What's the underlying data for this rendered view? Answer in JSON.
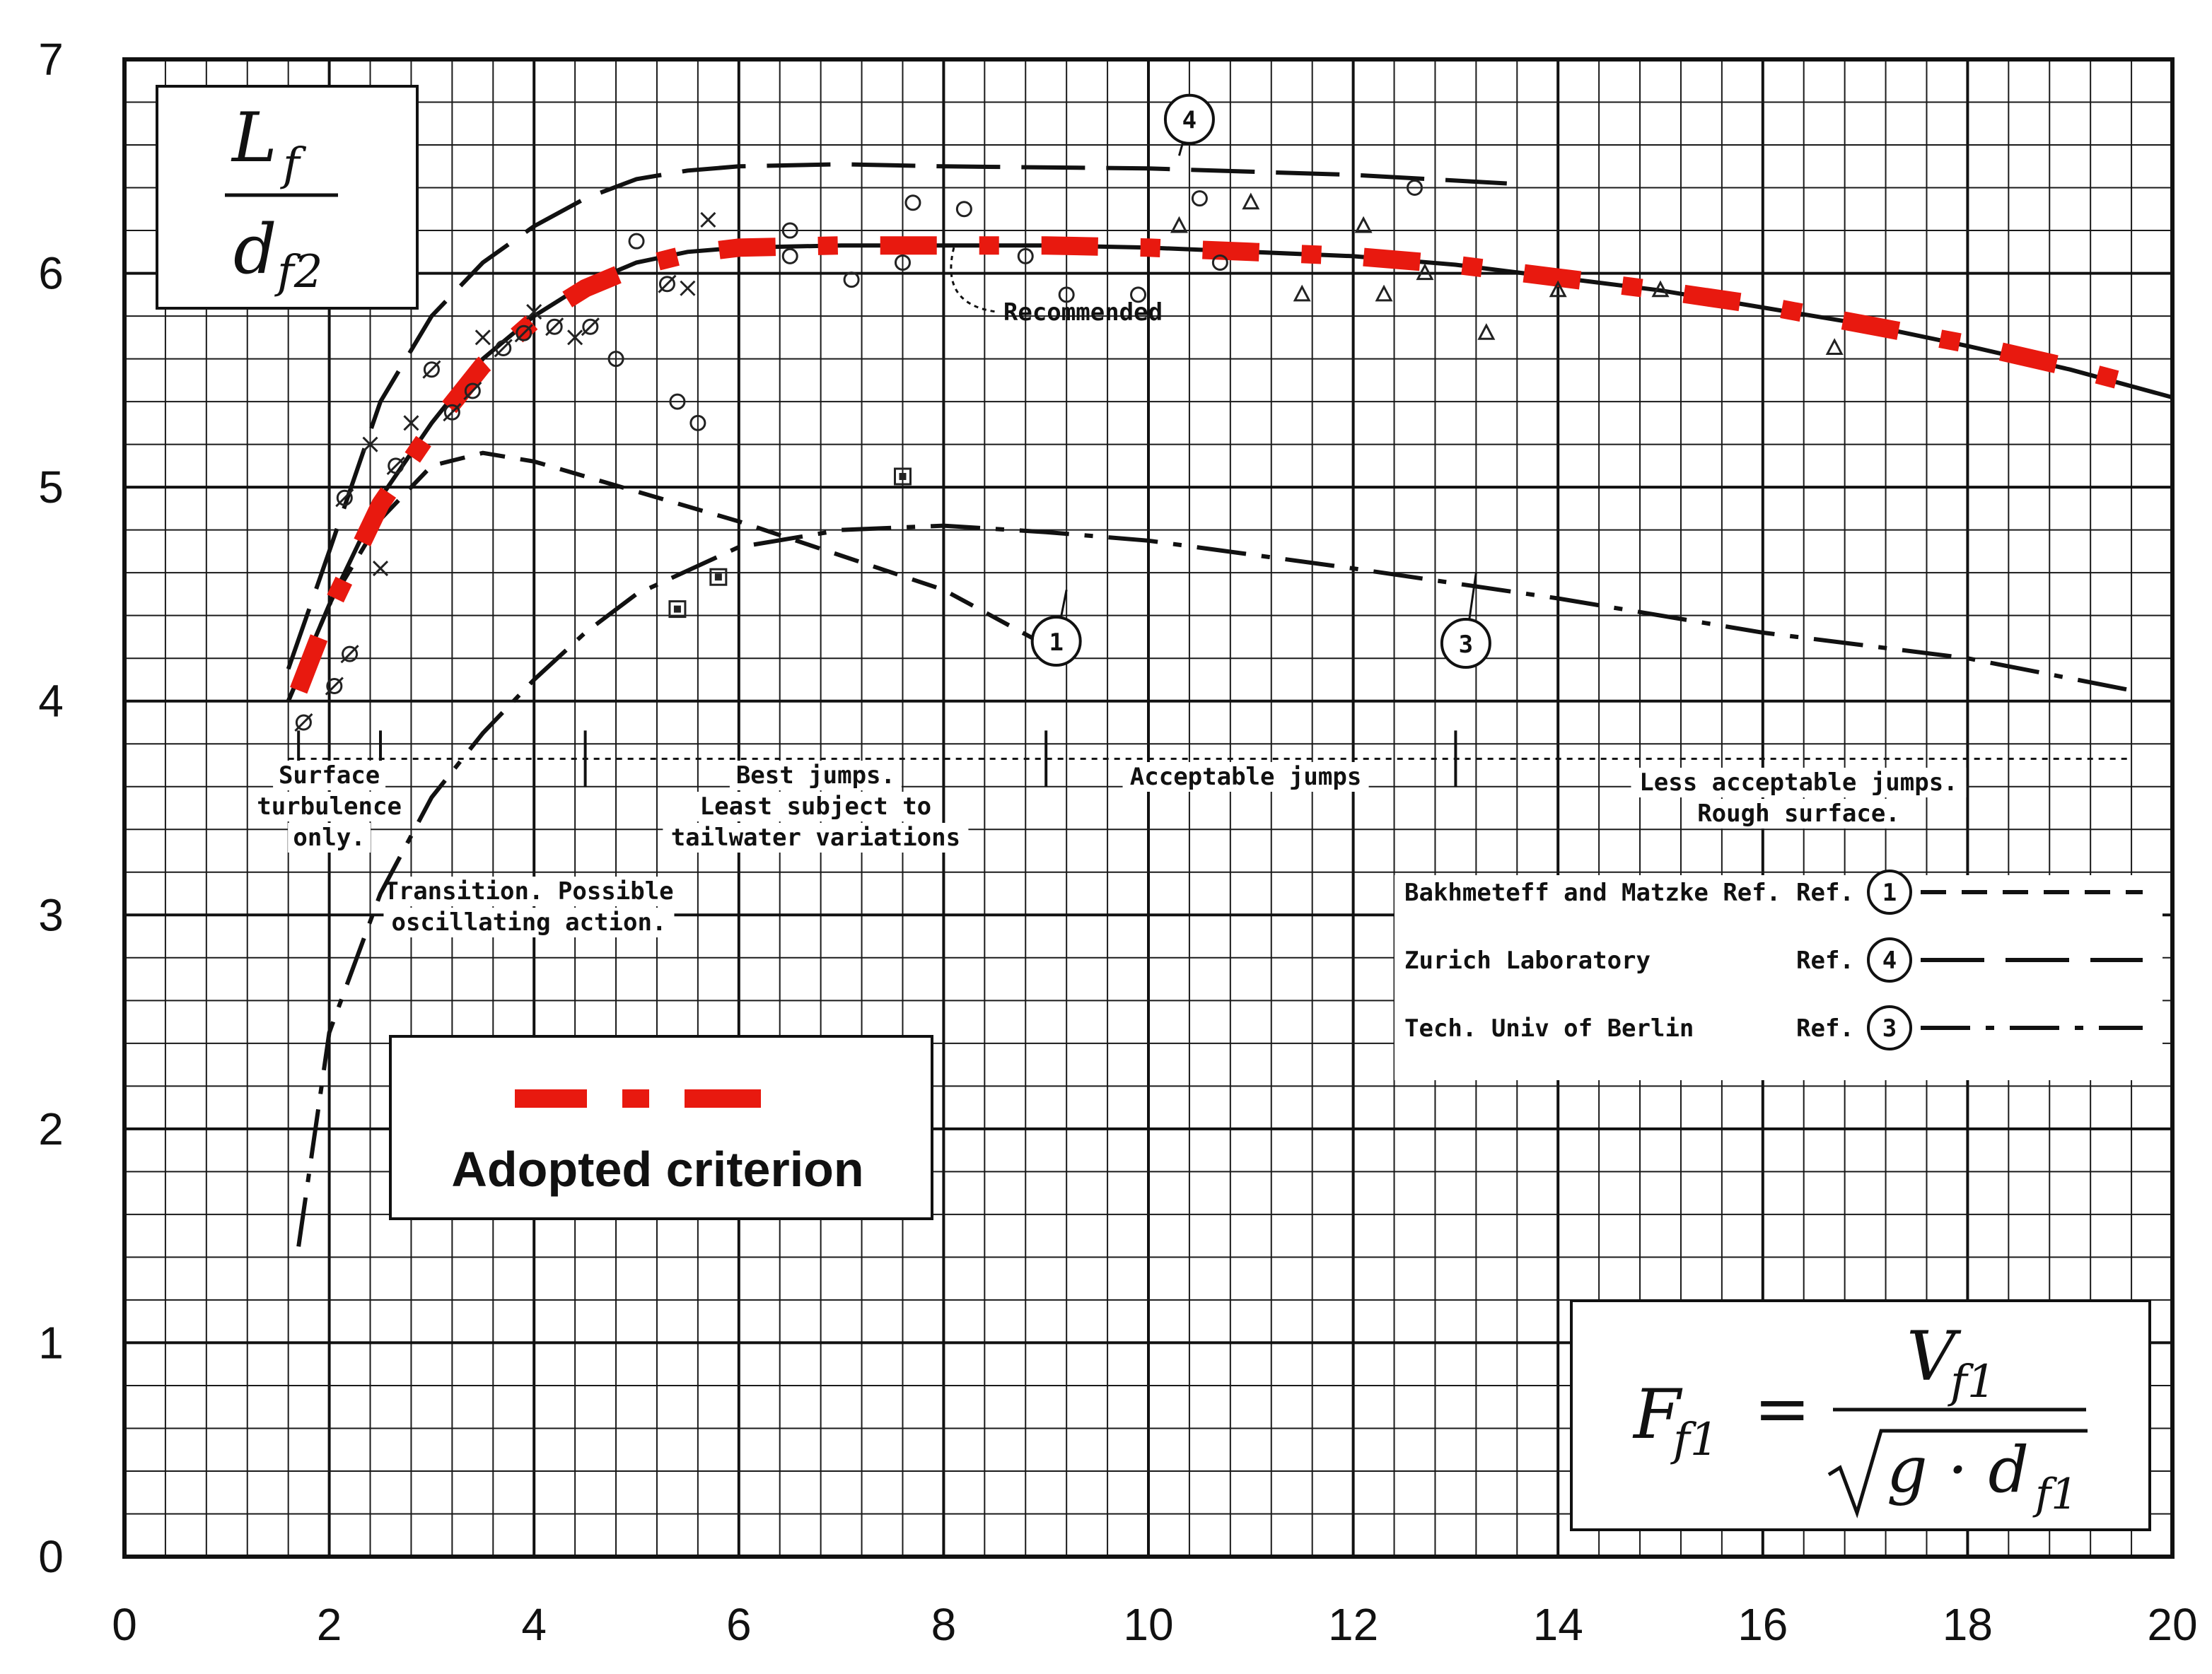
{
  "chart_data": {
    "type": "line",
    "xlim": [
      0,
      20
    ],
    "ylim": [
      0,
      7
    ],
    "x_ticks": [
      "0",
      "2",
      "4",
      "6",
      "8",
      "10",
      "12",
      "14",
      "16",
      "18",
      "20"
    ],
    "y_ticks": [
      "0",
      "1",
      "2",
      "3",
      "4",
      "5",
      "6",
      "7"
    ],
    "grid": true,
    "y_label": {
      "num": "L",
      "num_sub": "f",
      "den": "d",
      "den_sub": "f2"
    },
    "x_formula": {
      "lhs": "F",
      "lhs_sub": "f1",
      "eq": "=",
      "num": "V",
      "num_sub": "f1",
      "den_pre": "g · d",
      "den_sub": "f1"
    },
    "series": [
      {
        "name": "Bakhmeteff and Matzke Ref.",
        "ref": "1",
        "style": "dashed",
        "x": [
          1.6,
          2.0,
          2.5,
          3.0,
          3.5,
          4.0,
          5.0,
          6.0,
          7.0,
          8.0,
          9.0
        ],
        "y": [
          4.0,
          4.45,
          4.85,
          5.1,
          5.16,
          5.12,
          4.98,
          4.84,
          4.68,
          4.52,
          4.26
        ]
      },
      {
        "name": "Zurich Laboratory",
        "ref": "4",
        "style": "long-dashed",
        "x": [
          1.6,
          2.0,
          2.5,
          3.0,
          3.5,
          4.0,
          4.5,
          5.0,
          5.5,
          6.0,
          7.0,
          8.0,
          10.0,
          12.0,
          13.5
        ],
        "y": [
          4.15,
          4.7,
          5.4,
          5.8,
          6.05,
          6.22,
          6.35,
          6.44,
          6.48,
          6.5,
          6.51,
          6.5,
          6.49,
          6.46,
          6.42
        ]
      },
      {
        "name": "Tech. Univ of Berlin",
        "ref": "3",
        "style": "dash-dot",
        "x": [
          1.7,
          2.0,
          2.5,
          3.0,
          3.5,
          4.0,
          4.5,
          5.0,
          6.0,
          7.0,
          8.0,
          9.0,
          10.0,
          12.0,
          14.0,
          16.0,
          18.0,
          19.6
        ],
        "y": [
          1.45,
          2.45,
          3.1,
          3.55,
          3.85,
          4.1,
          4.32,
          4.5,
          4.72,
          4.8,
          4.82,
          4.79,
          4.75,
          4.62,
          4.48,
          4.32,
          4.2,
          4.05
        ]
      },
      {
        "name": "Recommended",
        "style": "solid",
        "x": [
          1.6,
          2.0,
          2.5,
          3.0,
          3.5,
          4.0,
          4.5,
          5.0,
          5.5,
          6.0,
          7.0,
          8.0,
          9.0,
          10.0,
          11.0,
          12.0,
          13.0,
          14.0,
          15.0,
          16.0,
          17.0,
          18.0,
          19.0,
          20.0
        ],
        "y": [
          4.0,
          4.45,
          4.95,
          5.3,
          5.6,
          5.8,
          5.95,
          6.05,
          6.1,
          6.12,
          6.13,
          6.13,
          6.13,
          6.12,
          6.1,
          6.08,
          6.04,
          5.98,
          5.92,
          5.84,
          5.76,
          5.66,
          5.55,
          5.42
        ]
      },
      {
        "name": "Adopted criterion",
        "style": "red-dash-dot",
        "x": [
          1.7,
          2.0,
          2.5,
          3.0,
          3.5,
          4.0,
          4.5,
          5.0,
          5.5,
          6.0,
          7.0,
          8.0,
          9.0,
          10.0,
          11.0,
          12.0,
          13.0,
          14.0,
          15.0,
          16.0,
          17.0,
          18.0,
          19.0,
          19.8
        ],
        "y": [
          4.05,
          4.42,
          4.92,
          5.27,
          5.57,
          5.78,
          5.93,
          6.03,
          6.09,
          6.12,
          6.13,
          6.13,
          6.13,
          6.12,
          6.1,
          6.08,
          6.04,
          5.98,
          5.92,
          5.85,
          5.76,
          5.67,
          5.56,
          5.46
        ]
      }
    ],
    "regions": [
      {
        "from": 1.6,
        "to": 2.5,
        "label": [
          "Surface",
          "turbulence",
          "only."
        ]
      },
      {
        "from": 2.5,
        "to": 4.5,
        "label": [
          "Transition. Possible",
          "oscillating action."
        ]
      },
      {
        "from": 4.5,
        "to": 9.0,
        "label": [
          "Best jumps.",
          "Least subject to",
          "tailwater variations"
        ]
      },
      {
        "from": 9.0,
        "to": 13.0,
        "label": [
          "Acceptable jumps"
        ]
      },
      {
        "from": 13.0,
        "to": 19.6,
        "label": [
          "Less acceptable jumps.",
          "Rough surface."
        ]
      }
    ],
    "annotations": [
      {
        "text": "Recommended",
        "x": 8.1,
        "y": 6.12
      }
    ],
    "circled_refs": [
      {
        "text": "4",
        "x": 10.4,
        "y": 6.72
      },
      {
        "text": "1",
        "x": 9.1,
        "y": 4.28
      },
      {
        "text": "3",
        "x": 13.1,
        "y": 4.27
      }
    ],
    "legend": {
      "placement": "right",
      "ref_prefix": "Ref."
    },
    "inset_legend": {
      "label": "Adopted criterion",
      "placement": "lower-left"
    },
    "points": [
      {
        "x": 1.75,
        "y": 3.9,
        "m": "ø"
      },
      {
        "x": 2.05,
        "y": 4.07,
        "m": "ø"
      },
      {
        "x": 2.2,
        "y": 4.22,
        "m": "ø"
      },
      {
        "x": 2.15,
        "y": 4.95,
        "m": "ø"
      },
      {
        "x": 2.5,
        "y": 4.62,
        "m": "x"
      },
      {
        "x": 2.4,
        "y": 5.2,
        "m": "x"
      },
      {
        "x": 2.65,
        "y": 5.1,
        "m": "ø"
      },
      {
        "x": 2.8,
        "y": 5.3,
        "m": "x"
      },
      {
        "x": 3.0,
        "y": 5.55,
        "m": "ø"
      },
      {
        "x": 3.2,
        "y": 5.35,
        "m": "ø"
      },
      {
        "x": 3.4,
        "y": 5.45,
        "m": "ø"
      },
      {
        "x": 3.5,
        "y": 5.7,
        "m": "x"
      },
      {
        "x": 3.7,
        "y": 5.65,
        "m": "ø"
      },
      {
        "x": 3.9,
        "y": 5.72,
        "m": "ø"
      },
      {
        "x": 4.0,
        "y": 5.82,
        "m": "x"
      },
      {
        "x": 4.2,
        "y": 5.75,
        "m": "ø"
      },
      {
        "x": 4.4,
        "y": 5.7,
        "m": "x"
      },
      {
        "x": 4.55,
        "y": 5.75,
        "m": "ø"
      },
      {
        "x": 4.8,
        "y": 5.6,
        "m": "o"
      },
      {
        "x": 5.0,
        "y": 6.15,
        "m": "o"
      },
      {
        "x": 5.3,
        "y": 5.95,
        "m": "ø"
      },
      {
        "x": 5.5,
        "y": 5.93,
        "m": "x"
      },
      {
        "x": 5.4,
        "y": 5.4,
        "m": "o"
      },
      {
        "x": 5.6,
        "y": 5.3,
        "m": "o"
      },
      {
        "x": 5.7,
        "y": 6.25,
        "m": "x"
      },
      {
        "x": 6.5,
        "y": 6.2,
        "m": "o"
      },
      {
        "x": 6.5,
        "y": 6.08,
        "m": "o"
      },
      {
        "x": 7.1,
        "y": 5.97,
        "m": "o"
      },
      {
        "x": 7.6,
        "y": 6.05,
        "m": "o"
      },
      {
        "x": 7.7,
        "y": 6.33,
        "m": "o"
      },
      {
        "x": 8.2,
        "y": 6.3,
        "m": "o"
      },
      {
        "x": 8.8,
        "y": 6.08,
        "m": "o"
      },
      {
        "x": 9.2,
        "y": 5.9,
        "m": "o"
      },
      {
        "x": 9.9,
        "y": 5.9,
        "m": "o"
      },
      {
        "x": 10.5,
        "y": 6.35,
        "m": "o"
      },
      {
        "x": 10.7,
        "y": 6.05,
        "m": "o"
      },
      {
        "x": 11.0,
        "y": 6.33,
        "m": "Δ"
      },
      {
        "x": 10.3,
        "y": 6.22,
        "m": "Δ"
      },
      {
        "x": 11.5,
        "y": 5.9,
        "m": "Δ"
      },
      {
        "x": 12.1,
        "y": 6.22,
        "m": "Δ"
      },
      {
        "x": 12.3,
        "y": 5.9,
        "m": "Δ"
      },
      {
        "x": 12.7,
        "y": 6.0,
        "m": "Δ"
      },
      {
        "x": 12.6,
        "y": 6.4,
        "m": "o"
      },
      {
        "x": 13.3,
        "y": 5.72,
        "m": "Δ"
      },
      {
        "x": 14.0,
        "y": 5.92,
        "m": "Δ"
      },
      {
        "x": 15.0,
        "y": 5.92,
        "m": "Δ"
      },
      {
        "x": 16.7,
        "y": 5.65,
        "m": "Δ"
      },
      {
        "x": 5.4,
        "y": 4.43,
        "m": "▣"
      },
      {
        "x": 5.8,
        "y": 4.58,
        "m": "▣"
      },
      {
        "x": 7.6,
        "y": 5.05,
        "m": "▣"
      }
    ]
  }
}
